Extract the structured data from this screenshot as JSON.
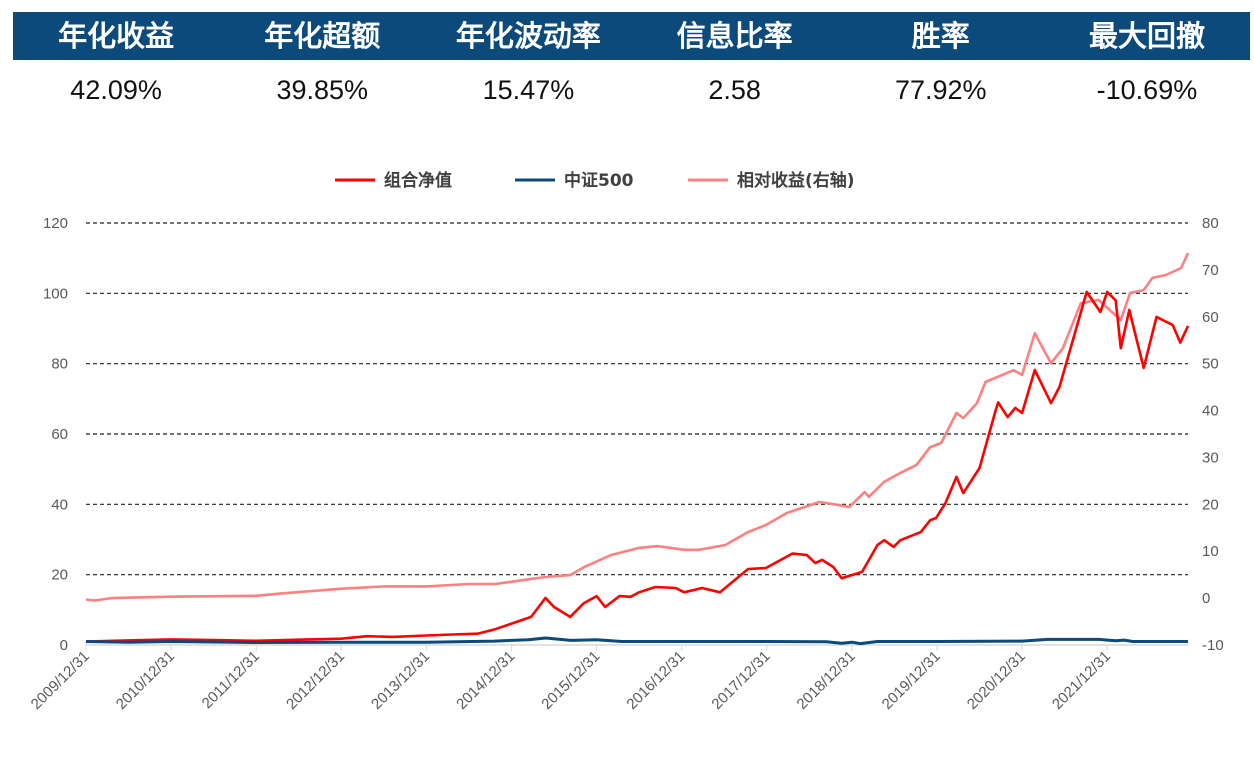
{
  "metrics": [
    {
      "label": "年化收益",
      "value": "42.09%"
    },
    {
      "label": "年化超额",
      "value": "39.85%"
    },
    {
      "label": "年化波动率",
      "value": "15.47%"
    },
    {
      "label": "信息比率",
      "value": "2.58"
    },
    {
      "label": "胜率",
      "value": "77.92%"
    },
    {
      "label": "最大回撤",
      "value": "-10.69%"
    }
  ],
  "chart_data": {
    "type": "line",
    "legend_position": "top",
    "grid": true,
    "xlim": [
      2010,
      2022.95
    ],
    "ylim_left": [
      0,
      120
    ],
    "ylim_right": [
      -10,
      80
    ],
    "yticks_left": [
      "0",
      "20",
      "40",
      "60",
      "80",
      "100",
      "120"
    ],
    "yticks_right": [
      "-10",
      "0",
      "10",
      "20",
      "30",
      "40",
      "50",
      "60",
      "70",
      "80"
    ],
    "xticks": [
      "2009/12/31",
      "2010/12/31",
      "2011/12/31",
      "2012/12/31",
      "2013/12/31",
      "2014/12/31",
      "2015/12/31",
      "2016/12/31",
      "2017/12/31",
      "2018/12/31",
      "2019/12/31",
      "2020/12/31",
      "2021/12/31"
    ],
    "series": [
      {
        "name": "组合净值",
        "axis": "left",
        "color": "#ff0000",
        "points": [
          [
            2010,
            1
          ],
          [
            2010.5,
            1.3
          ],
          [
            2011,
            1.6
          ],
          [
            2011.5,
            1.4
          ],
          [
            2012,
            1.2
          ],
          [
            2012.5,
            1.5
          ],
          [
            2013,
            1.8
          ],
          [
            2013.3,
            2.5
          ],
          [
            2013.6,
            2.3
          ],
          [
            2014,
            2.7
          ],
          [
            2014.3,
            3
          ],
          [
            2014.6,
            3.2
          ],
          [
            2014.81,
            4.5
          ],
          [
            2015.23,
            8
          ],
          [
            2015.4,
            13.4
          ],
          [
            2015.5,
            10.8
          ],
          [
            2015.69,
            8
          ],
          [
            2015.85,
            11.9
          ],
          [
            2016,
            13.9
          ],
          [
            2016.1,
            10.8
          ],
          [
            2016.27,
            13.9
          ],
          [
            2016.4,
            13.7
          ],
          [
            2016.5,
            15
          ],
          [
            2016.69,
            16.5
          ],
          [
            2016.93,
            16.2
          ],
          [
            2017.03,
            15
          ],
          [
            2017.24,
            16.2
          ],
          [
            2017.45,
            15
          ],
          [
            2017.78,
            21.6
          ],
          [
            2017.99,
            21.9
          ],
          [
            2018.3,
            26
          ],
          [
            2018.47,
            25.6
          ],
          [
            2018.57,
            23.3
          ],
          [
            2018.65,
            24.2
          ],
          [
            2018.78,
            22.2
          ],
          [
            2018.88,
            19
          ],
          [
            2019.12,
            20.8
          ],
          [
            2019.3,
            28.4
          ],
          [
            2019.38,
            29.8
          ],
          [
            2019.49,
            27.9
          ],
          [
            2019.57,
            29.8
          ],
          [
            2019.81,
            32.1
          ],
          [
            2019.92,
            35.5
          ],
          [
            2019.99,
            36.1
          ],
          [
            2020.1,
            40.4
          ],
          [
            2020.23,
            47.8
          ],
          [
            2020.31,
            43.2
          ],
          [
            2020.5,
            50.3
          ],
          [
            2020.69,
            66.8
          ],
          [
            2020.72,
            69
          ],
          [
            2020.83,
            64.8
          ],
          [
            2020.92,
            67.4
          ],
          [
            2021,
            66
          ],
          [
            2021.15,
            78.2
          ],
          [
            2021.34,
            68.8
          ],
          [
            2021.44,
            73.4
          ],
          [
            2021.76,
            100.4
          ],
          [
            2021.92,
            94.7
          ],
          [
            2022,
            100.4
          ],
          [
            2022.1,
            98
          ],
          [
            2022.16,
            84.4
          ],
          [
            2022.26,
            95.3
          ],
          [
            2022.31,
            90.4
          ],
          [
            2022.43,
            78.8
          ],
          [
            2022.58,
            93.3
          ],
          [
            2022.77,
            91
          ],
          [
            2022.86,
            86
          ],
          [
            2022.95,
            90.7
          ]
        ]
      },
      {
        "name": "中证500",
        "axis": "left",
        "color": "#0c4a7b",
        "points": [
          [
            2010,
            1
          ],
          [
            2010.5,
            0.8
          ],
          [
            2011,
            1
          ],
          [
            2012,
            0.7
          ],
          [
            2013,
            0.8
          ],
          [
            2014,
            0.8
          ],
          [
            2014.8,
            1.1
          ],
          [
            2015.2,
            1.5
          ],
          [
            2015.4,
            2
          ],
          [
            2015.7,
            1.3
          ],
          [
            2016,
            1.5
          ],
          [
            2016.3,
            1
          ],
          [
            2017,
            1
          ],
          [
            2018,
            1
          ],
          [
            2018.7,
            0.9
          ],
          [
            2018.88,
            0.5
          ],
          [
            2019,
            0.8
          ],
          [
            2019.1,
            0.4
          ],
          [
            2019.3,
            1
          ],
          [
            2020,
            1
          ],
          [
            2021,
            1.1
          ],
          [
            2021.3,
            1.6
          ],
          [
            2021.9,
            1.6
          ],
          [
            2022.1,
            1.2
          ],
          [
            2022.2,
            1.4
          ],
          [
            2022.3,
            1
          ],
          [
            2022.95,
            1
          ]
        ]
      },
      {
        "name": "相对收益(右轴)",
        "axis": "right",
        "color": "#ff8080",
        "points": [
          [
            2010,
            -0.3
          ],
          [
            2010.1,
            -0.5
          ],
          [
            2010.3,
            0
          ],
          [
            2011,
            0.3
          ],
          [
            2012,
            0.5
          ],
          [
            2012.3,
            1
          ],
          [
            2013,
            2
          ],
          [
            2013.5,
            2.5
          ],
          [
            2014,
            2.5
          ],
          [
            2014.5,
            3
          ],
          [
            2014.81,
            3
          ],
          [
            2015.4,
            4.5
          ],
          [
            2015.69,
            4.9
          ],
          [
            2015.85,
            6.6
          ],
          [
            2016.17,
            9.2
          ],
          [
            2016.5,
            10.7
          ],
          [
            2016.72,
            11.1
          ],
          [
            2017.03,
            10.3
          ],
          [
            2017.2,
            10.3
          ],
          [
            2017.51,
            11.3
          ],
          [
            2017.78,
            14.1
          ],
          [
            2017.99,
            15.6
          ],
          [
            2018.24,
            18.2
          ],
          [
            2018.62,
            20.5
          ],
          [
            2018.83,
            19.9
          ],
          [
            2018.97,
            19.4
          ],
          [
            2019.15,
            22.6
          ],
          [
            2019.2,
            21.6
          ],
          [
            2019.38,
            24.8
          ],
          [
            2019.57,
            26.7
          ],
          [
            2019.76,
            28.4
          ],
          [
            2019.92,
            32.2
          ],
          [
            2020.05,
            33.1
          ],
          [
            2020.23,
            39.5
          ],
          [
            2020.31,
            38.4
          ],
          [
            2020.47,
            41.6
          ],
          [
            2020.57,
            46.1
          ],
          [
            2020.9,
            48.6
          ],
          [
            2021,
            47.6
          ],
          [
            2021.15,
            56.5
          ],
          [
            2021.34,
            50.1
          ],
          [
            2021.48,
            53.3
          ],
          [
            2021.69,
            62.9
          ],
          [
            2021.9,
            63.6
          ],
          [
            2022.16,
            59.3
          ],
          [
            2022.27,
            65.1
          ],
          [
            2022.43,
            65.7
          ],
          [
            2022.53,
            68.3
          ],
          [
            2022.69,
            68.9
          ],
          [
            2022.87,
            70.4
          ],
          [
            2022.95,
            73.6
          ]
        ]
      }
    ]
  }
}
